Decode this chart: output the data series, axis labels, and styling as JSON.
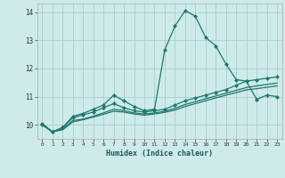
{
  "title": "",
  "xlabel": "Humidex (Indice chaleur)",
  "bg_color": "#ceeaea",
  "grid_color": "#aacfcf",
  "line_color": "#1a7a6e",
  "xlim": [
    -0.5,
    23.5
  ],
  "ylim": [
    9.5,
    14.3
  ],
  "yticks": [
    10,
    11,
    12,
    13,
    14
  ],
  "xticks": [
    0,
    1,
    2,
    3,
    4,
    5,
    6,
    7,
    8,
    9,
    10,
    11,
    12,
    13,
    14,
    15,
    16,
    17,
    18,
    19,
    20,
    21,
    22,
    23
  ],
  "series1_x": [
    0,
    1,
    2,
    3,
    4,
    5,
    6,
    7,
    8,
    9,
    10,
    11,
    12,
    13,
    14,
    15,
    16,
    17,
    18,
    19,
    20,
    21,
    22,
    23
  ],
  "series1_y": [
    10.05,
    9.75,
    9.9,
    10.3,
    10.4,
    10.55,
    10.7,
    11.05,
    10.85,
    10.65,
    10.5,
    10.55,
    12.65,
    13.5,
    14.05,
    13.85,
    13.1,
    12.8,
    12.15,
    11.6,
    11.55,
    10.9,
    11.05,
    11.0
  ],
  "series2_x": [
    0,
    1,
    2,
    3,
    4,
    5,
    6,
    7,
    8,
    9,
    10,
    11,
    12,
    13,
    14,
    15,
    16,
    17,
    18,
    19,
    20,
    21,
    22,
    23
  ],
  "series2_y": [
    10.0,
    9.75,
    9.9,
    10.25,
    10.35,
    10.45,
    10.6,
    10.75,
    10.6,
    10.5,
    10.45,
    10.5,
    10.55,
    10.7,
    10.85,
    10.95,
    11.05,
    11.15,
    11.25,
    11.4,
    11.55,
    11.6,
    11.65,
    11.7
  ],
  "series3_x": [
    0,
    1,
    2,
    3,
    4,
    5,
    6,
    7,
    8,
    9,
    10,
    11,
    12,
    13,
    14,
    15,
    16,
    17,
    18,
    19,
    20,
    21,
    22,
    23
  ],
  "series3_y": [
    10.0,
    9.75,
    9.85,
    10.15,
    10.2,
    10.3,
    10.42,
    10.55,
    10.5,
    10.42,
    10.38,
    10.42,
    10.48,
    10.58,
    10.72,
    10.82,
    10.92,
    11.02,
    11.12,
    11.22,
    11.32,
    11.38,
    11.43,
    11.48
  ],
  "series4_x": [
    0,
    1,
    2,
    3,
    4,
    5,
    6,
    7,
    8,
    9,
    10,
    11,
    12,
    13,
    14,
    15,
    16,
    17,
    18,
    19,
    20,
    21,
    22,
    23
  ],
  "series4_y": [
    10.0,
    9.75,
    9.82,
    10.1,
    10.18,
    10.27,
    10.37,
    10.48,
    10.45,
    10.38,
    10.34,
    10.38,
    10.44,
    10.52,
    10.65,
    10.75,
    10.85,
    10.95,
    11.05,
    11.14,
    11.24,
    11.28,
    11.33,
    11.38
  ]
}
